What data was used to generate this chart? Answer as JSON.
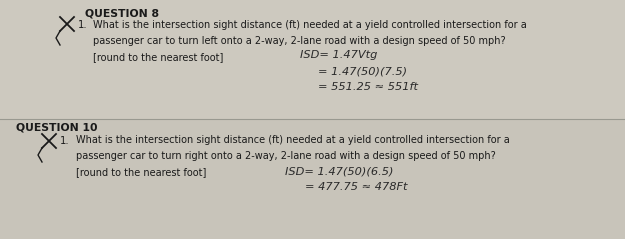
{
  "bg_top": "#cdc9bf",
  "bg_bottom": "#c8c4ba",
  "divider_color": "#999990",
  "text_color": "#1a1a1a",
  "handwrite_color": "#2a2a2a",
  "q8_header": "QUESTION 8",
  "q8_line1": "What is the intersection sight distance (ft) needed at a yield controlled intersection for a",
  "q8_line2": "passenger car to turn left onto a 2-way, 2-lane road with a design speed of 50 mph?",
  "q8_line3": "[round to the nearest foot]",
  "q8_formula1": "ISD= 1.47Vtg",
  "q8_formula2": "= 1.47(50)(7.5)",
  "q8_formula3": "= 551.25 ≈ 551ft",
  "q10_header": "QUESTION 10",
  "q10_line1": "What is the intersection sight distance (ft) needed at a yield controlled intersection for a",
  "q10_line2": "passenger car to turn right onto a 2-way, 2-lane road with a design speed of 50 mph?",
  "q10_line3": "[round to the nearest foot]",
  "q10_formula1": "ISD= 1.47(50)(6.5)",
  "q10_formula2": "= 477.75 ≈ 478Ft",
  "fig_width": 6.25,
  "fig_height": 2.39,
  "dpi": 100,
  "font_size_header": 7.8,
  "font_size_body": 7.0,
  "font_size_formula": 8.2,
  "font_size_number": 7.2
}
